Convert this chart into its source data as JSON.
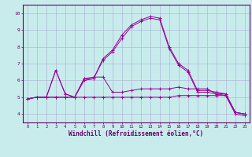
{
  "title": "",
  "xlabel": "Windchill (Refroidissement éolien,°C)",
  "ylabel": "",
  "bg_color": "#c8ecec",
  "line_color": "#990099",
  "grid_color": "#b0b8d8",
  "xlim": [
    -0.5,
    23.5
  ],
  "ylim": [
    3.5,
    10.5
  ],
  "xticks": [
    0,
    1,
    2,
    3,
    4,
    5,
    6,
    7,
    8,
    9,
    10,
    11,
    12,
    13,
    14,
    15,
    16,
    17,
    18,
    19,
    20,
    21,
    22,
    23
  ],
  "yticks": [
    4,
    5,
    6,
    7,
    8,
    9,
    10
  ],
  "series": [
    [
      4.9,
      5.0,
      5.0,
      6.6,
      5.2,
      5.0,
      6.1,
      6.2,
      6.2,
      5.3,
      5.3,
      5.4,
      5.5,
      5.5,
      5.5,
      5.5,
      5.6,
      5.5,
      5.5,
      5.5,
      5.2,
      5.2,
      4.1,
      4.0
    ],
    [
      4.9,
      5.0,
      5.0,
      5.0,
      5.0,
      5.0,
      5.0,
      5.0,
      5.0,
      5.0,
      5.0,
      5.0,
      5.0,
      5.0,
      5.0,
      5.0,
      5.1,
      5.1,
      5.1,
      5.1,
      5.1,
      5.1,
      4.1,
      4.0
    ],
    [
      4.9,
      5.0,
      5.0,
      5.0,
      5.0,
      5.0,
      6.1,
      6.1,
      7.3,
      7.8,
      8.7,
      9.3,
      9.6,
      9.8,
      9.7,
      8.0,
      7.0,
      6.6,
      5.4,
      5.4,
      5.3,
      5.2,
      4.1,
      4.0
    ],
    [
      4.9,
      5.0,
      5.0,
      6.6,
      5.2,
      5.0,
      6.0,
      6.1,
      7.2,
      7.7,
      8.5,
      9.2,
      9.5,
      9.7,
      9.6,
      7.9,
      6.9,
      6.5,
      5.3,
      5.3,
      5.2,
      5.1,
      4.0,
      3.9
    ]
  ]
}
